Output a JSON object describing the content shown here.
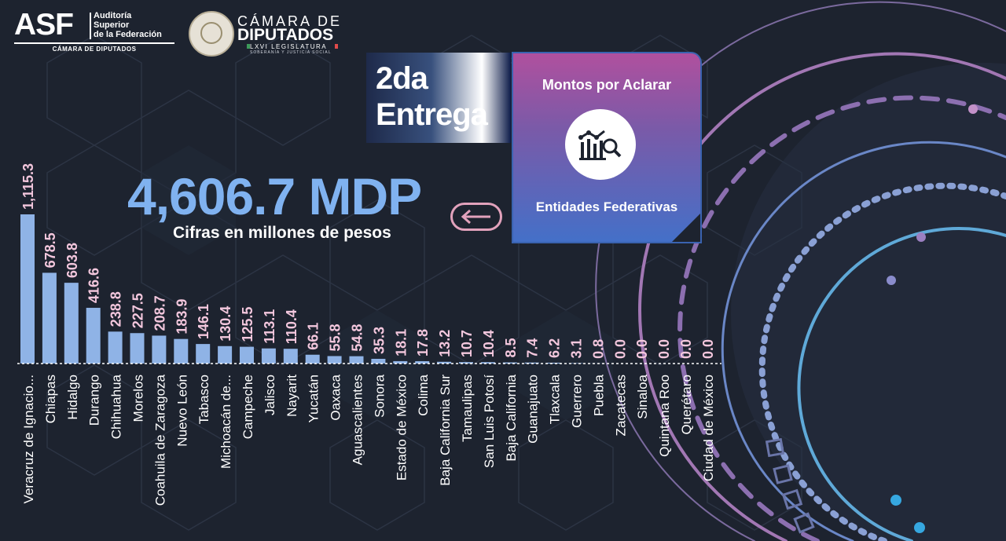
{
  "header": {
    "asf_mark": "ASF",
    "asf_name_line1": "Auditoría",
    "asf_name_line2": "Superior",
    "asf_name_line3": "de la Federación",
    "asf_sub": "CÁMARA DE DIPUTADOS",
    "camara_line1": "CÁMARA DE",
    "camara_line2": "DIPUTADOS",
    "camara_legislatura": "LXVI LEGISLATURA",
    "camara_motto": "SOBERANÍA Y JUSTICIA SOCIAL"
  },
  "entrega": {
    "line1": "2da",
    "line2": "Entrega"
  },
  "card": {
    "title": "Montos por Aclarar",
    "subtitle": "Entidades Federativas",
    "icon": "chart-search-icon"
  },
  "total": {
    "value": "4,606.7 MDP",
    "caption": "Cifras en millones de pesos"
  },
  "colors": {
    "bar": "#8fb3e6",
    "value_label": "#f3c7dd",
    "total": "#80b2f0",
    "background": "#1d232f"
  },
  "chart_data": {
    "type": "bar",
    "title": "",
    "xlabel": "",
    "ylabel": "",
    "categories": [
      "Veracruz de Ignacio...",
      "Chiapas",
      "Hidalgo",
      "Durango",
      "Chihuahua",
      "Morelos",
      "Coahuila de Zaragoza",
      "Nuevo León",
      "Tabasco",
      "Michoacán de...",
      "Campeche",
      "Jalisco",
      "Nayarit",
      "Yucatán",
      "Oaxaca",
      "Aguascalientes",
      "Sonora",
      "Estado de México",
      "Colima",
      "Baja California Sur",
      "Tamaulipas",
      "San Luis Potosí",
      "Baja California",
      "Guanajuato",
      "Tlaxcala",
      "Guerrero",
      "Puebla",
      "Zacatecas",
      "Sinaloa",
      "Quintana Roo",
      "Querétaro",
      "Ciudad de México"
    ],
    "values": [
      1115.3,
      678.5,
      603.8,
      416.6,
      238.8,
      227.5,
      208.7,
      183.9,
      146.1,
      130.4,
      125.5,
      113.1,
      110.4,
      66.1,
      55.8,
      54.8,
      35.3,
      18.1,
      17.8,
      13.2,
      10.7,
      10.4,
      8.5,
      7.4,
      6.2,
      3.1,
      0.8,
      0.0,
      0.0,
      0.0,
      0.0,
      0.0
    ],
    "labels": [
      "1,115.3",
      "678.5",
      "603.8",
      "416.6",
      "238.8",
      "227.5",
      "208.7",
      "183.9",
      "146.1",
      "130.4",
      "125.5",
      "113.1",
      "110.4",
      "66.1",
      "55.8",
      "54.8",
      "35.3",
      "18.1",
      "17.8",
      "13.2",
      "10.7",
      "10.4",
      "8.5",
      "7.4",
      "6.2",
      "3.1",
      "0.8",
      "0.0",
      "0.0",
      "0.0",
      "0.0",
      "0.0"
    ],
    "ylim": [
      0,
      1115.3
    ],
    "grid": false,
    "legend": "none"
  }
}
